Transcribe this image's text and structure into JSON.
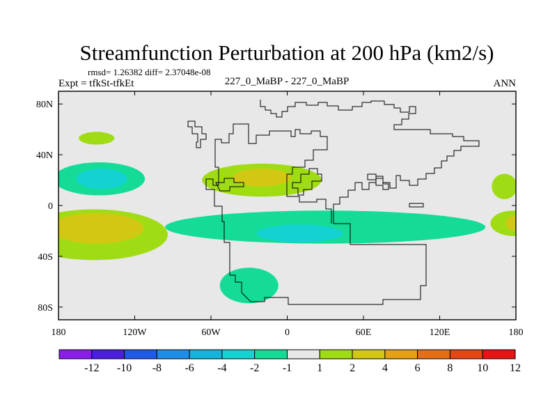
{
  "chart_data": {
    "type": "heatmap",
    "title": "Streamfunction Perturbation at 200 hPa (km2/s)",
    "stats": "rmsd= 1.26382 diff= 2.37048e-08",
    "left_label": "Expt = tfkSt-tfkEt",
    "center_label": "227_0_MaBP - 227_0_MaBP",
    "right_label": "ANN",
    "x_range": [
      -180,
      180
    ],
    "y_range": [
      -90,
      90
    ],
    "x_ticks": [
      {
        "value": -180,
        "label": "180"
      },
      {
        "value": -120,
        "label": "120W"
      },
      {
        "value": -60,
        "label": "60W"
      },
      {
        "value": 0,
        "label": "0"
      },
      {
        "value": 60,
        "label": "60E"
      },
      {
        "value": 120,
        "label": "120E"
      },
      {
        "value": 180,
        "label": "180"
      }
    ],
    "y_ticks": [
      {
        "value": 80,
        "label": "80N"
      },
      {
        "value": 40,
        "label": "40N"
      },
      {
        "value": 0,
        "label": "0"
      },
      {
        "value": -40,
        "label": "40S"
      },
      {
        "value": -80,
        "label": "80S"
      }
    ],
    "colorbar": {
      "labels": [
        "-12",
        "-10",
        "-8",
        "-6",
        "-4",
        "-2",
        "-1",
        "1",
        "2",
        "4",
        "6",
        "8",
        "10",
        "12"
      ],
      "colors": [
        "#8a1ee8",
        "#4b1ee0",
        "#1e5ae6",
        "#1e8ee6",
        "#14b4dc",
        "#14d2d2",
        "#14dc96",
        "#e8e8e8",
        "#a0dc14",
        "#d2c814",
        "#e6a014",
        "#e66e14",
        "#e64614",
        "#e61414"
      ]
    },
    "regions": [
      {
        "level": "1..2",
        "color": "#a0dc14",
        "lon": -150,
        "lat": 53,
        "rx": 14,
        "ry": 5
      },
      {
        "level": "-1..-2",
        "color": "#14dc96",
        "lon": -148,
        "lat": 21,
        "rx": 36,
        "ry": 13
      },
      {
        "level": "-2..-4",
        "color": "#14d2d2",
        "lon": -146,
        "lat": 21,
        "rx": 20,
        "ry": 8
      },
      {
        "level": "1..2",
        "color": "#a0dc14",
        "lon": -152,
        "lat": -23,
        "rx": 58,
        "ry": 20
      },
      {
        "level": "2..4",
        "color": "#d2c814",
        "lon": -150,
        "lat": -18,
        "rx": 37,
        "ry": 12
      },
      {
        "level": "1..2",
        "color": "#a0dc14",
        "lon": -20,
        "lat": 20,
        "rx": 47,
        "ry": 13
      },
      {
        "level": "2..4",
        "color": "#d2c814",
        "lon": -20,
        "lat": 22,
        "rx": 23,
        "ry": 7
      },
      {
        "level": "-1..-2",
        "color": "#14dc96",
        "lon": 30,
        "lat": -17,
        "rx": 126,
        "ry": 13
      },
      {
        "level": "-2..-4",
        "color": "#14d2d2",
        "lon": 10,
        "lat": -22,
        "rx": 34,
        "ry": 7
      },
      {
        "level": "-1..-2",
        "color": "#14dc96",
        "lon": -30,
        "lat": -63,
        "rx": 23,
        "ry": 14
      },
      {
        "level": "1..2",
        "color": "#a0dc14",
        "lon": 171,
        "lat": 15,
        "rx": 10,
        "ry": 10
      },
      {
        "level": "1..2",
        "color": "#a0dc14",
        "lon": 178,
        "lat": -14,
        "rx": 18,
        "ry": 10
      },
      {
        "level": "2..4",
        "color": "#d2c814",
        "lon": 180,
        "lat": -14,
        "rx": 8,
        "ry": 6
      }
    ]
  }
}
